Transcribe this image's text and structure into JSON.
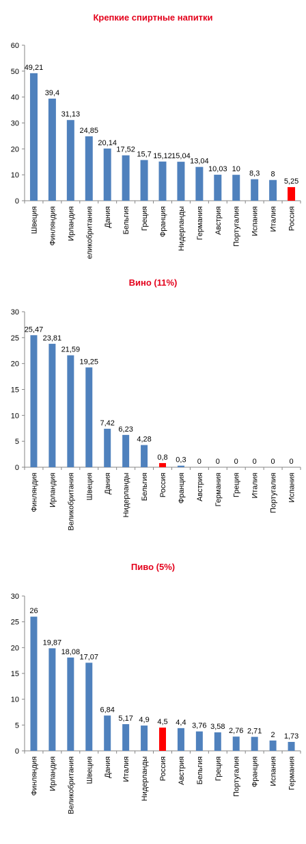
{
  "colors": {
    "bar": "#4f81bd",
    "highlight": "#ff0000",
    "axis": "#868686",
    "title": "#e3001b"
  },
  "chart_data": [
    {
      "type": "bar",
      "title": "Крепкие спиртные напитки",
      "categories": [
        "Швеция",
        "Финляндия",
        "Ирландия",
        "Великобритания",
        "Дания",
        "Бельгия",
        "Греция",
        "Франция",
        "Нидерланды",
        "Германия",
        "Австрия",
        "Португалия",
        "Испания",
        "Италия",
        "Россия"
      ],
      "values": [
        49.21,
        39.4,
        31.13,
        24.85,
        20.14,
        17.52,
        15.7,
        15.12,
        15.04,
        13.04,
        10.03,
        10,
        8.3,
        8,
        5.25
      ],
      "value_labels": [
        "49,21",
        "39,4",
        "31,13",
        "24,85",
        "20,14",
        "17,52",
        "15,7",
        "15,12",
        "15,04",
        "13,04",
        "10,03",
        "10",
        "8,3",
        "8",
        "5,25"
      ],
      "highlight": "Россия",
      "ylim": [
        0,
        60
      ],
      "yticks": [
        0,
        10,
        20,
        30,
        40,
        50,
        60
      ],
      "grid": false
    },
    {
      "type": "bar",
      "title": "Вино (11%)",
      "categories": [
        "Финляндия",
        "Ирландия",
        "Великобритания",
        "Швеция",
        "Дания",
        "Нидерланды",
        "Бельгия",
        "Россия",
        "Франция",
        "Австрия",
        "Германия",
        "Греция",
        "Италия",
        "Португалия",
        "Испания"
      ],
      "values": [
        25.47,
        23.81,
        21.59,
        19.25,
        7.42,
        6.23,
        4.28,
        0.8,
        0.3,
        0,
        0,
        0,
        0,
        0,
        0
      ],
      "value_labels": [
        "25,47",
        "23,81",
        "21,59",
        "19,25",
        "7,42",
        "6,23",
        "4,28",
        "0,8",
        "0,3",
        "0",
        "0",
        "0",
        "0",
        "0",
        "0"
      ],
      "highlight": "Россия",
      "ylim": [
        0,
        30
      ],
      "yticks": [
        0,
        5,
        10,
        15,
        20,
        25,
        30
      ],
      "grid": false
    },
    {
      "type": "bar",
      "title": "Пиво (5%)",
      "categories": [
        "Финляндия",
        "Ирландия",
        "Великобритания",
        "Швеция",
        "Дания",
        "Италия",
        "Нидерланды",
        "Россия",
        "Австрия",
        "Бельгия",
        "Греция",
        "Португалия",
        "Франция",
        "Испания",
        "Германия"
      ],
      "values": [
        26,
        19.87,
        18.08,
        17.07,
        6.84,
        5.17,
        4.9,
        4.5,
        4.4,
        3.76,
        3.58,
        2.76,
        2.71,
        2,
        1.73
      ],
      "value_labels": [
        "26",
        "19,87",
        "18,08",
        "17,07",
        "6,84",
        "5,17",
        "4,9",
        "4,5",
        "4,4",
        "3,76",
        "3,58",
        "2,76",
        "2,71",
        "2",
        "1,73"
      ],
      "highlight": "Россия",
      "ylim": [
        0,
        30
      ],
      "yticks": [
        0,
        5,
        10,
        15,
        20,
        25,
        30
      ],
      "grid": false
    }
  ]
}
